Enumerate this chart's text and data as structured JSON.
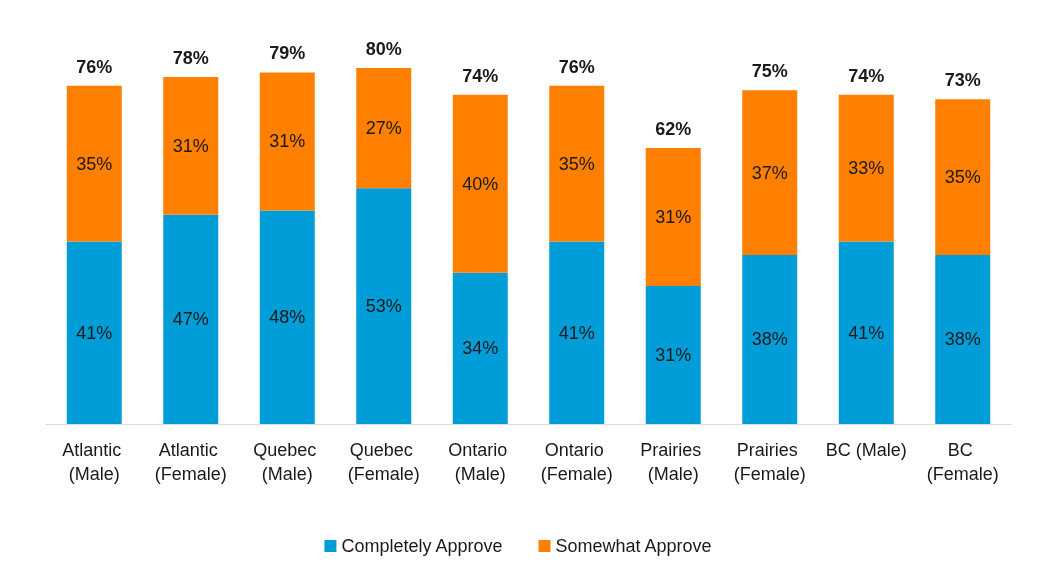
{
  "chart_data": {
    "type": "bar",
    "stacked": true,
    "categories": [
      "Atlantic (Male)",
      "Atlantic (Female)",
      "Quebec (Male)",
      "Quebec (Female)",
      "Ontario (Male)",
      "Ontario (Female)",
      "Prairies (Male)",
      "Prairies (Female)",
      "BC (Male)",
      "BC (Female)"
    ],
    "series": [
      {
        "name": "Completely Approve",
        "color": "#009dd9",
        "values": [
          41,
          47,
          48,
          53,
          34,
          41,
          31,
          38,
          41,
          38
        ],
        "value_labels": [
          "41%",
          "47%",
          "48%",
          "53%",
          "34%",
          "41%",
          "31%",
          "38%",
          "41%",
          "38%"
        ]
      },
      {
        "name": "Somewhat Approve",
        "color": "#ff8000",
        "values": [
          35,
          31,
          31,
          27,
          40,
          35,
          31,
          37,
          33,
          35
        ],
        "value_labels": [
          "35%",
          "31%",
          "31%",
          "27%",
          "40%",
          "35%",
          "31%",
          "37%",
          "33%",
          "35%"
        ]
      }
    ],
    "totals": [
      "76%",
      "78%",
      "79%",
      "80%",
      "74%",
      "76%",
      "62%",
      "75%",
      "74%",
      "73%"
    ],
    "legend": "bottom"
  }
}
